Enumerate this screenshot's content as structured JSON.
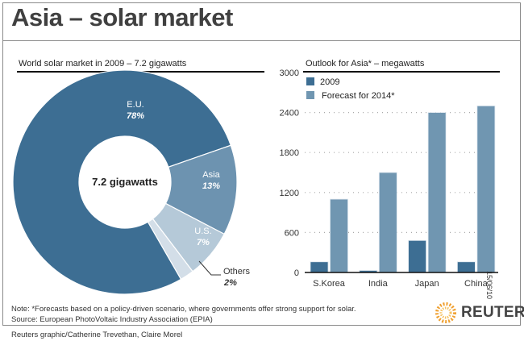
{
  "title": "Asia – solar market",
  "date": "15/06/10",
  "note": "Note: *Forecasts based on a policy-driven scenario, where governments offer strong support for solar.",
  "source": "Source: European PhotoVoltaic Industry Association (EPIA)",
  "credit": "Reuters graphic/Catherine Trevethan, Claire Morel",
  "logo_text": "REUTERS",
  "colors": {
    "c2009": "#3d6e93",
    "c2014": "#7096b1",
    "eu": "#3d6e93",
    "asia": "#6d93b0",
    "us": "#b5c9d8",
    "others": "#d3dee8"
  },
  "chart_data": [
    {
      "type": "pie",
      "title": "World solar market in 2009 – 7.2 gigawatts",
      "center_label": "7.2 gigawatts",
      "slices": [
        {
          "label": "E.U.",
          "pct_label": "78%",
          "value": 78
        },
        {
          "label": "Asia",
          "pct_label": "13%",
          "value": 13
        },
        {
          "label": "U.S.",
          "pct_label": "7%",
          "value": 7
        },
        {
          "label": "Others",
          "pct_label": "2%",
          "value": 2
        }
      ]
    },
    {
      "type": "bar",
      "title": "Outlook for Asia* – megawatts",
      "categories": [
        "S.Korea",
        "India",
        "Japan",
        "China"
      ],
      "series": [
        {
          "name": "2009",
          "values": [
            160,
            30,
            480,
            160
          ]
        },
        {
          "name": "Forecast for 2014*",
          "values": [
            1100,
            1500,
            2400,
            2500
          ]
        }
      ],
      "ylim": [
        0,
        3000
      ],
      "yticks": [
        "0",
        "600",
        "1200",
        "1800",
        "2400",
        "3000"
      ],
      "grid": true,
      "legend": "top-left"
    }
  ]
}
